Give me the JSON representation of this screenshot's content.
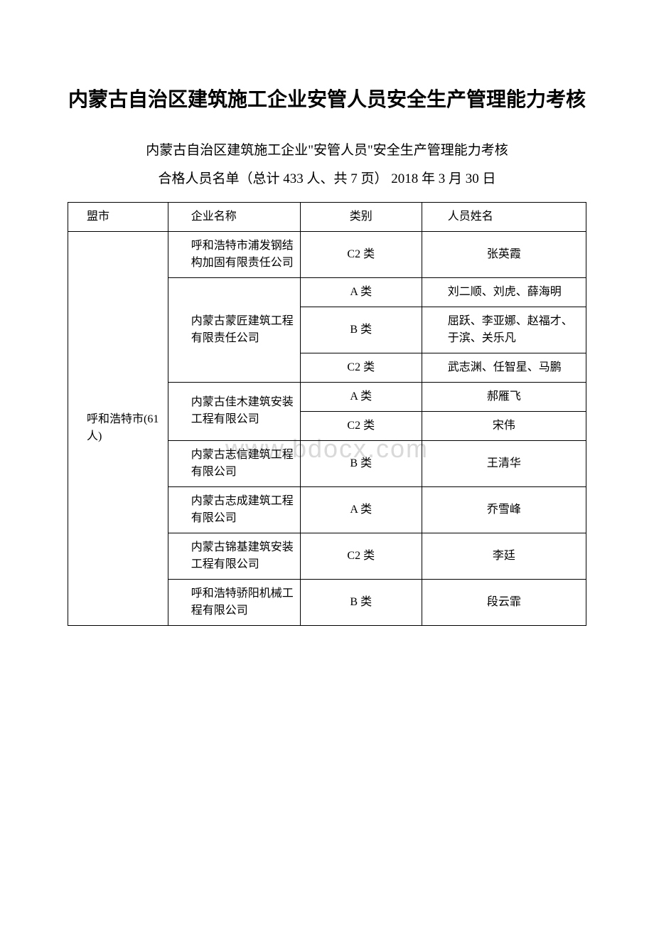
{
  "title": "内蒙古自治区建筑施工企业安管人员安全生产管理能力考核",
  "subtitle_line1": "内蒙古自治区建筑施工企业\"安管人员\"安全生产管理能力考核",
  "subtitle_line2": "合格人员名单（总计 433 人、共 7 页） 2018 年 3 月 30 日",
  "watermark": "www.bdocx.com",
  "headers": {
    "city": "盟市",
    "company": "企业名称",
    "category": "类别",
    "name": "人员姓名"
  },
  "city_label": "呼和浩特市(61 人)",
  "rows": [
    {
      "company": "呼和浩特市浦发钢结构加固有限责任公司",
      "company_rowspan": 1,
      "category": "C2 类",
      "name": "张英霞",
      "name_centered": true
    },
    {
      "company": "内蒙古蒙匠建筑工程有限责任公司",
      "company_rowspan": 3,
      "category": "A 类",
      "name": "刘二顺、刘虎、薛海明",
      "name_centered": false
    },
    {
      "category": "B 类",
      "name": "屈跃、李亚娜、赵福才、于滨、关乐凡",
      "name_centered": false
    },
    {
      "category": "C2 类",
      "name": "武志渊、任智星、马鹏",
      "name_centered": false
    },
    {
      "company": "内蒙古佳木建筑安装工程有限公司",
      "company_rowspan": 2,
      "category": "A 类",
      "name": "郝雁飞",
      "name_centered": true
    },
    {
      "category": "C2 类",
      "name": "宋伟",
      "name_centered": true
    },
    {
      "company": "内蒙古志信建筑工程有限公司",
      "company_rowspan": 1,
      "category": "B 类",
      "name": "王清华",
      "name_centered": true
    },
    {
      "company": "内蒙古志成建筑工程有限公司",
      "company_rowspan": 1,
      "category": "A 类",
      "name": "乔雪峰",
      "name_centered": true
    },
    {
      "company": "内蒙古锦基建筑安装工程有限公司",
      "company_rowspan": 1,
      "category": "C2 类",
      "name": "李廷",
      "name_centered": true
    },
    {
      "company": "呼和浩特骄阳机械工程有限公司",
      "company_rowspan": 1,
      "category": "B 类",
      "name": "段云霏",
      "name_centered": true
    }
  ]
}
